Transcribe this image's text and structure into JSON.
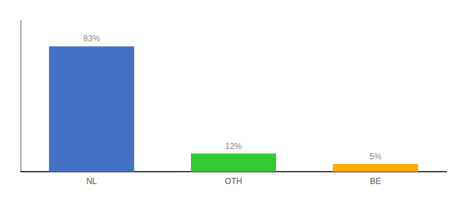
{
  "chart_data": {
    "type": "bar",
    "categories": [
      "NL",
      "OTH",
      "BE"
    ],
    "values": [
      83,
      12,
      5
    ],
    "colors": [
      "#4472c4",
      "#33cc33",
      "#ffaa00"
    ],
    "data_labels": true,
    "value_labels": [
      "83%",
      "12%",
      "5%"
    ],
    "ylim": [
      0,
      100
    ],
    "tick_labels": "x",
    "grid": false
  }
}
